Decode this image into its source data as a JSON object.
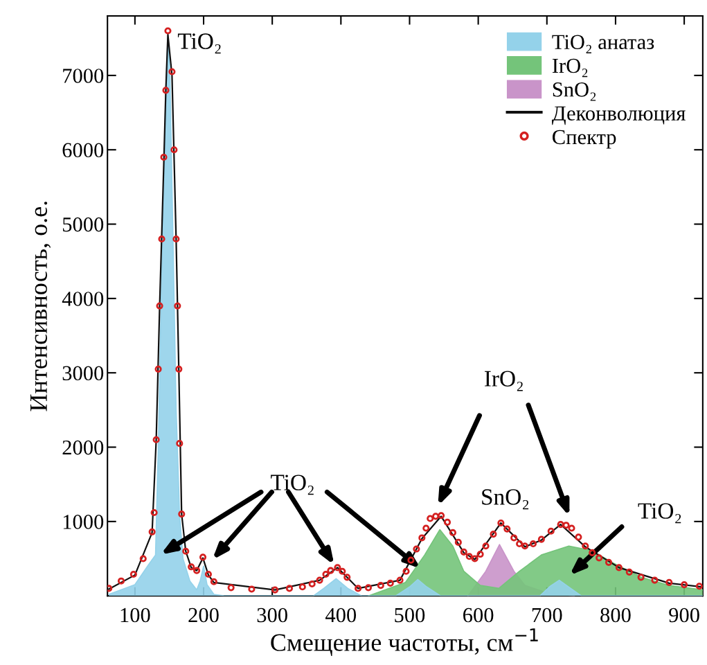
{
  "chart_data": {
    "type": "area",
    "xlabel": "Смещение частоты, см$^{−1}$",
    "ylabel": "Интенсивность, о.е.",
    "xlim": [
      60,
      927
    ],
    "xticks": [
      100,
      200,
      300,
      400,
      500,
      600,
      700,
      800,
      900
    ],
    "ylim": [
      0,
      7800
    ],
    "yticks": [
      1000,
      2000,
      3000,
      4000,
      5000,
      6000,
      7000
    ],
    "grid": false,
    "legend": "top right",
    "annotations": [
      {
        "text": "TiO₂",
        "x": 148,
        "y": 7600
      },
      "TiO₂",
      "IrO₂",
      "SnO₂",
      "TiO₂"
    ],
    "series": [
      {
        "name": "TiO₂ анатаз",
        "color": "#94d2ea",
        "x": [
          62,
          100,
          120,
          130,
          134,
          140,
          145,
          148,
          151,
          155,
          160,
          165,
          170,
          180,
          190,
          195,
          200,
          205,
          215,
          230,
          360,
          375,
          393,
          410,
          430,
          480,
          500,
          512,
          525,
          545,
          690,
          705,
          718,
          730,
          750,
          927
        ],
        "values": [
          20,
          150,
          420,
          550,
          2000,
          4800,
          6800,
          7550,
          7000,
          5000,
          2500,
          1100,
          500,
          200,
          80,
          200,
          400,
          150,
          20,
          0,
          0,
          100,
          230,
          100,
          0,
          0,
          120,
          220,
          120,
          0,
          0,
          130,
          210,
          130,
          0,
          0
        ]
      },
      {
        "name": "IrO₂",
        "color": "#74c47a",
        "x": [
          440,
          494,
          522,
          544,
          563,
          579,
          603,
          630,
          660,
          692,
          732,
          765,
          797,
          837,
          878,
          927
        ],
        "values": [
          0,
          180,
          550,
          890,
          670,
          330,
          140,
          100,
          330,
          550,
          670,
          610,
          440,
          250,
          140,
          80
        ]
      },
      {
        "name": "SnO₂",
        "color": "#c994c9",
        "x": [
          585,
          611,
          631,
          652,
          668,
          700,
          740
        ],
        "values": [
          0,
          330,
          690,
          330,
          140,
          40,
          0
        ]
      },
      {
        "name": "Деконволюция",
        "type": "line",
        "color": "#111111",
        "x": [
          62,
          100,
          125,
          131,
          136,
          142,
          145,
          148,
          154,
          160,
          164,
          168,
          174,
          182,
          190,
          199,
          207,
          215,
          304,
          369,
          395,
          425,
          486,
          518,
          546,
          579,
          595,
          633,
          668,
          692,
          720,
          756,
          805,
          878,
          927
        ],
        "values": [
          90,
          280,
          850,
          2100,
          3900,
          5800,
          6800,
          7550,
          7000,
          4800,
          3000,
          1100,
          600,
          380,
          340,
          510,
          280,
          180,
          80,
          210,
          380,
          100,
          210,
          770,
          1070,
          580,
          490,
          980,
          660,
          750,
          960,
          660,
          380,
          170,
          120
        ]
      },
      {
        "name": "Спектр",
        "type": "scatter",
        "color": "#d42020",
        "marker": "circle",
        "x": [
          62,
          80,
          98,
          112,
          125,
          128,
          131,
          134,
          136,
          139,
          142,
          145,
          148,
          154,
          157,
          160,
          162,
          164,
          165,
          168,
          174,
          182,
          190,
          199,
          207,
          215,
          240,
          270,
          304,
          325,
          344,
          358,
          369,
          378,
          385,
          395,
          402,
          409,
          425,
          440,
          458,
          472,
          486,
          495,
          502,
          510,
          518,
          524,
          530,
          538,
          546,
          555,
          563,
          571,
          579,
          587,
          595,
          603,
          611,
          622,
          633,
          642,
          652,
          660,
          668,
          680,
          692,
          706,
          720,
          728,
          736,
          746,
          756,
          766,
          776,
          790,
          805,
          820,
          837,
          857,
          878,
          900,
          922
        ],
        "values": [
          100,
          200,
          290,
          500,
          860,
          1120,
          2100,
          3050,
          3900,
          4800,
          5900,
          6800,
          7600,
          7050,
          6000,
          4800,
          3900,
          3050,
          2050,
          1100,
          600,
          390,
          340,
          520,
          290,
          190,
          110,
          90,
          80,
          100,
          120,
          160,
          210,
          290,
          340,
          380,
          330,
          250,
          100,
          110,
          140,
          170,
          210,
          330,
          480,
          630,
          780,
          910,
          1040,
          1070,
          1080,
          990,
          850,
          720,
          590,
          530,
          500,
          560,
          670,
          830,
          980,
          900,
          780,
          700,
          670,
          700,
          760,
          870,
          960,
          950,
          910,
          790,
          670,
          580,
          510,
          450,
          380,
          320,
          250,
          210,
          180,
          150,
          130
        ]
      }
    ]
  }
}
